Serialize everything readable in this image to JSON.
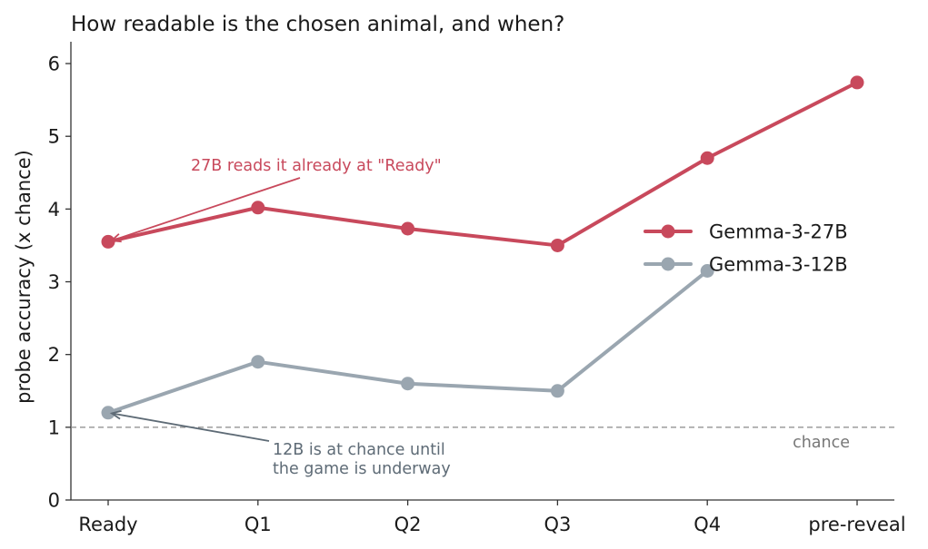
{
  "chart_data": {
    "type": "line",
    "title": "How readable is the chosen animal, and when?",
    "xlabel": "",
    "ylabel": "probe accuracy (x chance)",
    "categories": [
      "Ready",
      "Q1",
      "Q2",
      "Q3",
      "Q4",
      "pre-reveal"
    ],
    "ylim": [
      0,
      6.3
    ],
    "yticks": [
      0,
      1,
      2,
      3,
      4,
      5,
      6
    ],
    "grid": false,
    "legend_position": "center-right",
    "series": [
      {
        "name": "Gemma-3-27B",
        "color": "#c8495c",
        "values": [
          3.55,
          4.02,
          3.73,
          3.5,
          4.7,
          5.74
        ]
      },
      {
        "name": "Gemma-3-12B",
        "color": "#9aa6b0",
        "values": [
          1.2,
          1.9,
          1.6,
          1.5,
          3.15,
          null
        ]
      }
    ],
    "reference_line": {
      "y": 1,
      "label": "chance",
      "color": "#888888"
    },
    "annotations": [
      {
        "lines": [
          "27B reads it already at \"Ready\""
        ],
        "color": "#c8495c",
        "target": {
          "category": "Ready",
          "y": 3.55
        }
      },
      {
        "lines": [
          "12B is at chance until",
          "the game is underway"
        ],
        "color": "#5e6b76",
        "target": {
          "category": "Ready",
          "y": 1.2
        }
      }
    ]
  }
}
